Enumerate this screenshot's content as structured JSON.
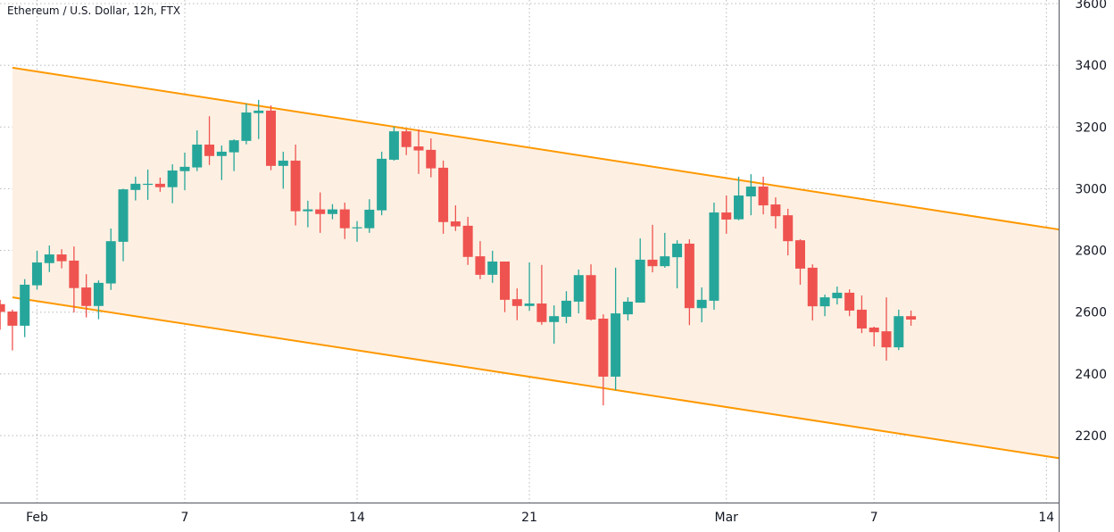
{
  "header": {
    "title": "Ethereum / U.S. Dollar, 12h, FTX"
  },
  "colors": {
    "up": "#26a69a",
    "down": "#ef5350",
    "channel_line": "#ff9800",
    "channel_fill": "#fdf0e2",
    "grid": "#b8b8b8"
  },
  "chart_data": {
    "type": "candlestick",
    "title": "Ethereum / U.S. Dollar, 12h, FTX",
    "interval": "12h",
    "ylim": [
      2020,
      3610
    ],
    "y_ticks": [
      "3600",
      "3400",
      "3200",
      "3000",
      "2800",
      "2600",
      "2400",
      "2200"
    ],
    "x_ticks": [
      {
        "label": "Feb",
        "date": "Feb 1"
      },
      {
        "label": "7",
        "date": "Feb 7"
      },
      {
        "label": "14",
        "date": "Feb 14"
      },
      {
        "label": "21",
        "date": "Feb 21"
      },
      {
        "label": "Mar",
        "date": "Mar 1"
      },
      {
        "label": "7",
        "date": "Mar 7"
      },
      {
        "label": "14",
        "date": "Mar 14"
      }
    ],
    "grid": true,
    "candles_start": "Jan 30 12:00",
    "candles_columns": [
      "open",
      "high",
      "low",
      "close"
    ],
    "candles": [
      [
        2626,
        2640,
        2543,
        2601
      ],
      [
        2602,
        2608,
        2476,
        2556
      ],
      [
        2556,
        2707,
        2519,
        2689
      ],
      [
        2687,
        2799,
        2673,
        2761
      ],
      [
        2759,
        2816,
        2730,
        2787
      ],
      [
        2787,
        2804,
        2742,
        2765
      ],
      [
        2767,
        2813,
        2599,
        2678
      ],
      [
        2680,
        2723,
        2583,
        2620
      ],
      [
        2620,
        2703,
        2577,
        2695
      ],
      [
        2693,
        2871,
        2672,
        2830
      ],
      [
        2828,
        3000,
        2765,
        2998
      ],
      [
        2996,
        3039,
        2962,
        3016
      ],
      [
        3013,
        3062,
        2964,
        3016
      ],
      [
        3016,
        3036,
        2990,
        3005
      ],
      [
        3005,
        3079,
        2953,
        3059
      ],
      [
        3057,
        3117,
        2995,
        3071
      ],
      [
        3069,
        3189,
        3057,
        3143
      ],
      [
        3143,
        3235,
        3077,
        3106
      ],
      [
        3106,
        3140,
        3028,
        3120
      ],
      [
        3118,
        3160,
        3057,
        3157
      ],
      [
        3155,
        3276,
        3144,
        3247
      ],
      [
        3245,
        3288,
        3161,
        3253
      ],
      [
        3253,
        3270,
        3060,
        3074
      ],
      [
        3074,
        3120,
        3000,
        3091
      ],
      [
        3091,
        3143,
        2881,
        2927
      ],
      [
        2927,
        2961,
        2875,
        2933
      ],
      [
        2933,
        2988,
        2857,
        2918
      ],
      [
        2918,
        2950,
        2901,
        2933
      ],
      [
        2933,
        2955,
        2837,
        2872
      ],
      [
        2872,
        2895,
        2828,
        2875
      ],
      [
        2872,
        2966,
        2857,
        2932
      ],
      [
        2930,
        3120,
        2914,
        3097
      ],
      [
        3094,
        3201,
        3091,
        3186
      ],
      [
        3186,
        3192,
        3109,
        3135
      ],
      [
        3137,
        3192,
        3048,
        3124
      ],
      [
        3126,
        3163,
        3037,
        3066
      ],
      [
        3068,
        3091,
        2854,
        2892
      ],
      [
        2894,
        2946,
        2863,
        2878
      ],
      [
        2880,
        2909,
        2753,
        2779
      ],
      [
        2781,
        2830,
        2707,
        2721
      ],
      [
        2721,
        2799,
        2695,
        2764
      ],
      [
        2764,
        2764,
        2600,
        2640
      ],
      [
        2642,
        2677,
        2574,
        2620
      ],
      [
        2620,
        2761,
        2604,
        2628
      ],
      [
        2628,
        2753,
        2559,
        2568
      ],
      [
        2568,
        2622,
        2498,
        2587
      ],
      [
        2585,
        2668,
        2564,
        2637
      ],
      [
        2634,
        2738,
        2596,
        2720
      ],
      [
        2720,
        2755,
        2573,
        2576
      ],
      [
        2579,
        2593,
        2298,
        2391
      ],
      [
        2391,
        2744,
        2347,
        2596
      ],
      [
        2593,
        2648,
        2573,
        2634
      ],
      [
        2631,
        2839,
        2631,
        2770
      ],
      [
        2770,
        2883,
        2729,
        2749
      ],
      [
        2749,
        2857,
        2744,
        2781
      ],
      [
        2778,
        2833,
        2677,
        2822
      ],
      [
        2822,
        2836,
        2558,
        2613
      ],
      [
        2613,
        2680,
        2567,
        2640
      ],
      [
        2637,
        2955,
        2608,
        2923
      ],
      [
        2923,
        2978,
        2854,
        2900
      ],
      [
        2901,
        3039,
        2898,
        2978
      ],
      [
        2975,
        3047,
        2914,
        3007
      ],
      [
        3007,
        3039,
        2917,
        2946
      ],
      [
        2949,
        2972,
        2871,
        2911
      ],
      [
        2914,
        2935,
        2784,
        2830
      ],
      [
        2833,
        2836,
        2689,
        2741
      ],
      [
        2744,
        2755,
        2573,
        2619
      ],
      [
        2619,
        2657,
        2587,
        2648
      ],
      [
        2645,
        2683,
        2625,
        2663
      ],
      [
        2663,
        2674,
        2587,
        2605
      ],
      [
        2608,
        2654,
        2532,
        2547
      ],
      [
        2550,
        2553,
        2489,
        2535
      ],
      [
        2538,
        2648,
        2443,
        2486
      ],
      [
        2486,
        2608,
        2477,
        2587
      ],
      [
        2587,
        2605,
        2556,
        2576
      ]
    ],
    "channel": {
      "upper": [
        {
          "date": "Jan 31 00:00",
          "price": 3392
        },
        {
          "date": "Mar 14 12:00",
          "price": 2868
        }
      ],
      "lower": [
        {
          "date": "Jan 31 00:00",
          "price": 2648
        },
        {
          "date": "Mar 14 12:00",
          "price": 2127
        }
      ]
    }
  }
}
